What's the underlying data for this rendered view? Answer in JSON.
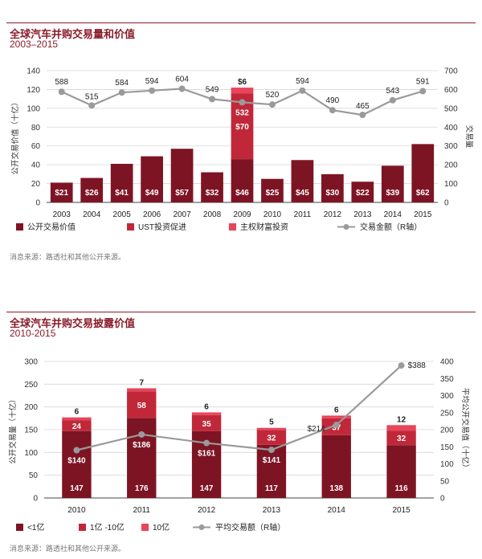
{
  "colors": {
    "accent": "#8a1c2a",
    "dark": "#7d1424",
    "mid": "#c0283a",
    "light": "#e8455a",
    "line": "#9a9a9a"
  },
  "chart_data": [
    {
      "type": "bar",
      "title": "全球汽车并购交易量和价值",
      "subtitle": "2003–2015",
      "source": "消息来源：路透社和其他公开来源。",
      "ylabel": "公开交易价值（十亿）",
      "y2label": "交易量",
      "ylim": [
        0,
        140
      ],
      "y2lim": [
        0,
        700
      ],
      "yticks": [
        0,
        20,
        40,
        60,
        80,
        100,
        120,
        140
      ],
      "y2ticks": [
        0,
        100,
        200,
        300,
        400,
        500,
        600,
        700
      ],
      "categories": [
        "2003",
        "2004",
        "2005",
        "2006",
        "2007",
        "2008",
        "2009",
        "2010",
        "2011",
        "2012",
        "2013",
        "2014",
        "2015"
      ],
      "series": [
        {
          "name": "公开交易价值",
          "kind": "bar",
          "values": [
            21,
            26,
            41,
            49,
            57,
            32,
            46,
            25,
            45,
            30,
            22,
            39,
            62
          ],
          "labels": [
            "$21",
            "$26",
            "$41",
            "$49",
            "$57",
            "$32",
            "$46",
            "$25",
            "$45",
            "$30",
            "$22",
            "$39",
            "$62"
          ]
        },
        {
          "name": "UST投资促进",
          "kind": "bar",
          "values": [
            0,
            0,
            0,
            0,
            0,
            0,
            70,
            0,
            0,
            0,
            0,
            0,
            0
          ],
          "labels": [
            "",
            "",
            "",
            "",
            "",
            "",
            "$70",
            "",
            "",
            "",
            "",
            "",
            ""
          ]
        },
        {
          "name": "主权财富投资",
          "kind": "bar",
          "values": [
            0,
            0,
            0,
            0,
            0,
            0,
            6,
            0,
            0,
            0,
            0,
            0,
            0
          ],
          "labels": [
            "",
            "",
            "",
            "",
            "",
            "",
            "$6",
            "",
            "",
            "",
            "",
            "",
            ""
          ]
        },
        {
          "name": "交易金额（R轴）",
          "kind": "line",
          "axis": "right",
          "values": [
            588,
            515,
            584,
            594,
            604,
            549,
            532,
            520,
            594,
            490,
            465,
            543,
            591
          ],
          "labels": [
            "588",
            "515",
            "584",
            "594",
            "604",
            "549",
            "532",
            "520",
            "594",
            "490",
            "465",
            "543",
            "591"
          ]
        }
      ],
      "legend": [
        "公开交易价值",
        "UST投资促进",
        "主权财富投资",
        "交易金额（R轴）"
      ]
    },
    {
      "type": "bar",
      "title": "全球汽车并购交易披露价值",
      "subtitle": "2010-2015",
      "source": "消息来源：路透社和其他公开来源。",
      "ylabel": "公开交易量（十亿）",
      "y2label": "平均公开交易值（十亿）",
      "ylim": [
        0,
        300
      ],
      "y2lim": [
        0,
        400
      ],
      "yticks": [
        0,
        50,
        100,
        150,
        200,
        250,
        300
      ],
      "y2ticks": [
        0,
        50,
        100,
        150,
        200,
        250,
        300,
        350,
        400
      ],
      "categories": [
        "2010",
        "2011",
        "2012",
        "2013",
        "2014",
        "2015"
      ],
      "series": [
        {
          "name": "<1亿",
          "kind": "bar",
          "values": [
            147,
            176,
            147,
            117,
            138,
            116
          ],
          "labels": [
            "147",
            "176",
            "147",
            "117",
            "138",
            "116"
          ]
        },
        {
          "name": "1亿 -10亿",
          "kind": "bar",
          "values": [
            24,
            58,
            35,
            32,
            37,
            32
          ],
          "labels": [
            "24",
            "58",
            "35",
            "32",
            "37",
            "32"
          ]
        },
        {
          "name": "10亿",
          "kind": "bar",
          "values": [
            6,
            7,
            6,
            5,
            6,
            12
          ],
          "labels": [
            "6",
            "7",
            "6",
            "5",
            "6",
            "12"
          ]
        },
        {
          "name": "平均交易额（R轴）",
          "kind": "line",
          "axis": "right",
          "values": [
            140,
            186,
            161,
            141,
            214,
            388
          ],
          "labels": [
            "$140",
            "$186",
            "$161",
            "$141",
            "$214",
            "$388"
          ]
        }
      ],
      "legend": [
        "<1亿",
        "1亿 -10亿",
        "10亿",
        "平均交易额（R轴）"
      ]
    }
  ]
}
